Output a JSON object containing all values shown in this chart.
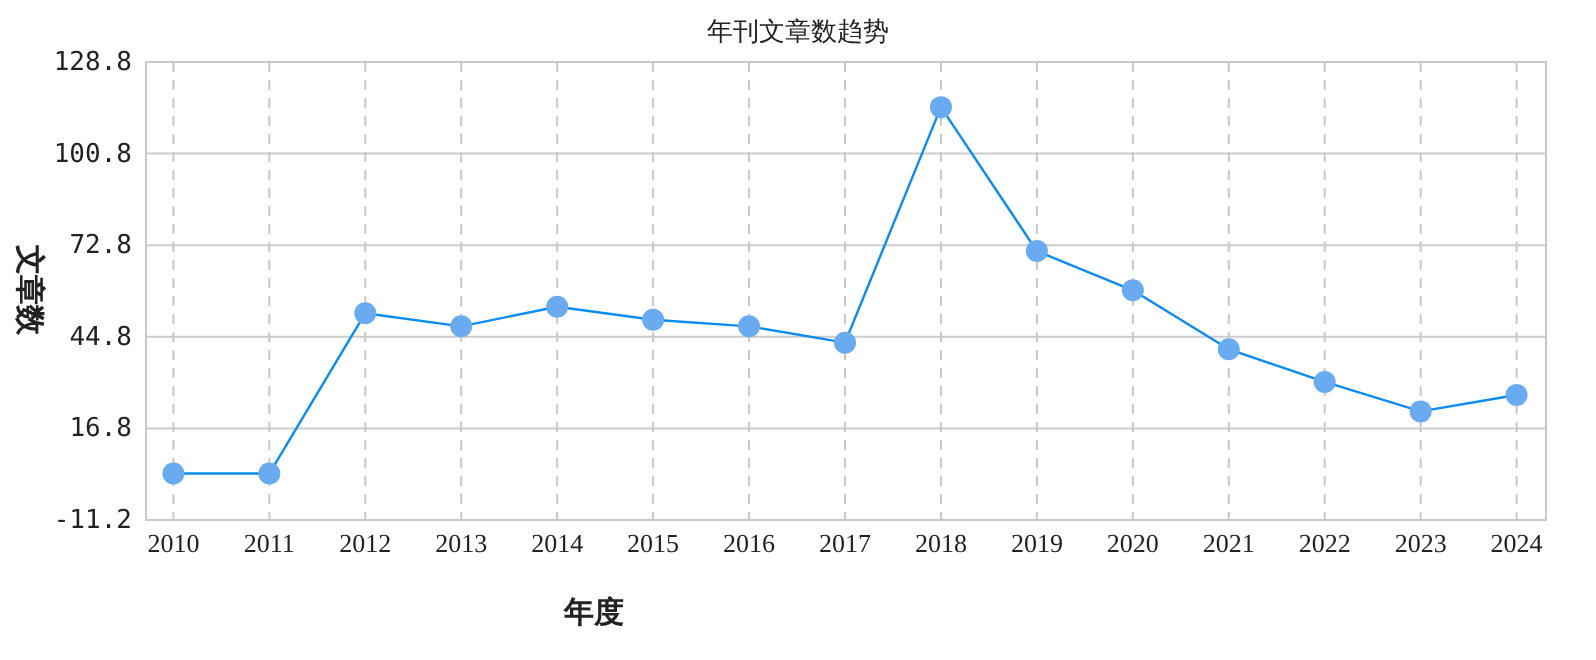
{
  "chart_data": {
    "type": "line",
    "title": "年刊文章数趋势",
    "xlabel": "年度",
    "ylabel": "文章数",
    "categories": [
      "2010",
      "2011",
      "2012",
      "2013",
      "2014",
      "2015",
      "2016",
      "2017",
      "2018",
      "2019",
      "2020",
      "2021",
      "2022",
      "2023",
      "2024"
    ],
    "series": [
      {
        "color": "#0a8cf0",
        "values": [
          3,
          3,
          52,
          48,
          54,
          50,
          48,
          43,
          115,
          71,
          59,
          41,
          31,
          22,
          27
        ]
      }
    ],
    "ylim": [
      -11.2,
      128.8
    ],
    "yticks": [
      -11.2,
      16.8,
      44.8,
      72.8,
      100.8,
      128.8
    ],
    "grid": true,
    "marker": "circle",
    "line_style": "solid"
  }
}
